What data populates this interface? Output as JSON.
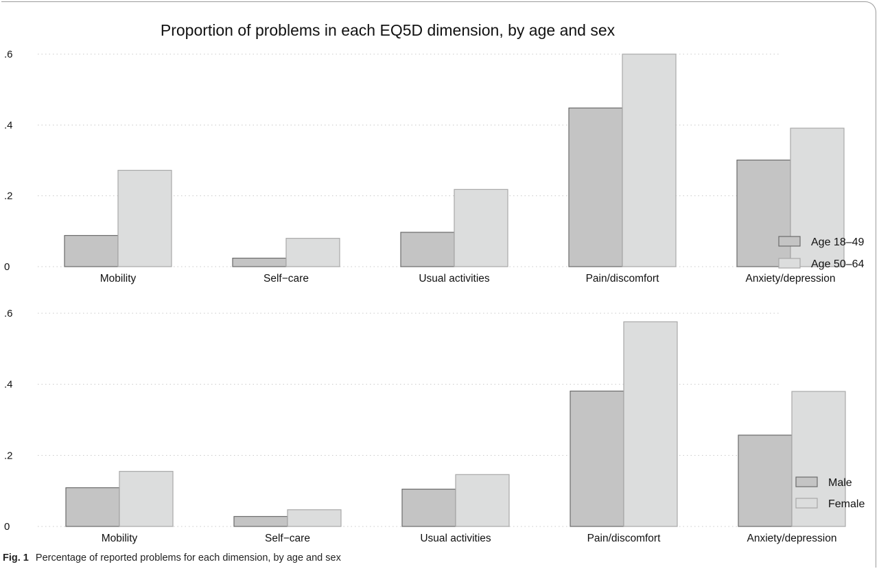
{
  "title": "Proportion of problems in each EQ5D dimension, by age and sex",
  "caption": {
    "label": "Fig. 1",
    "text": "Percentage of reported problems for each dimension, by age and sex"
  },
  "colors": {
    "dark_bar": "#c4c4c4",
    "light_bar": "#dcdddd",
    "dark_edge": "#6a6a6a",
    "light_edge": "#a8a8a8",
    "grid": "#c8c8c8"
  },
  "chart_data": [
    {
      "type": "bar",
      "categories": [
        "Mobility",
        "Self−care",
        "Usual activities",
        "Pain/discomfort",
        "Anxiety/depression"
      ],
      "series": [
        {
          "name": "Age 18–49",
          "values": [
            0.088,
            0.024,
            0.097,
            0.448,
            0.301
          ]
        },
        {
          "name": "Age 50–64",
          "values": [
            0.272,
            0.08,
            0.218,
            0.6,
            0.391
          ]
        }
      ],
      "ylim": [
        0,
        0.6
      ],
      "yticks": [
        0,
        0.2,
        0.4,
        0.6
      ],
      "yticklabels": [
        "0",
        ".2",
        ".4",
        ".6"
      ],
      "grid": true,
      "legend": "right"
    },
    {
      "type": "bar",
      "categories": [
        "Mobility",
        "Self−care",
        "Usual activities",
        "Pain/discomfort",
        "Anxiety/depression"
      ],
      "series": [
        {
          "name": "Male",
          "values": [
            0.109,
            0.028,
            0.105,
            0.381,
            0.257
          ]
        },
        {
          "name": "Female",
          "values": [
            0.155,
            0.047,
            0.146,
            0.576,
            0.38
          ]
        }
      ],
      "ylim": [
        0,
        0.6
      ],
      "yticks": [
        0,
        0.2,
        0.4,
        0.6
      ],
      "yticklabels": [
        "0",
        ".2",
        ".4",
        ".6"
      ],
      "grid": true,
      "legend": "right"
    }
  ]
}
